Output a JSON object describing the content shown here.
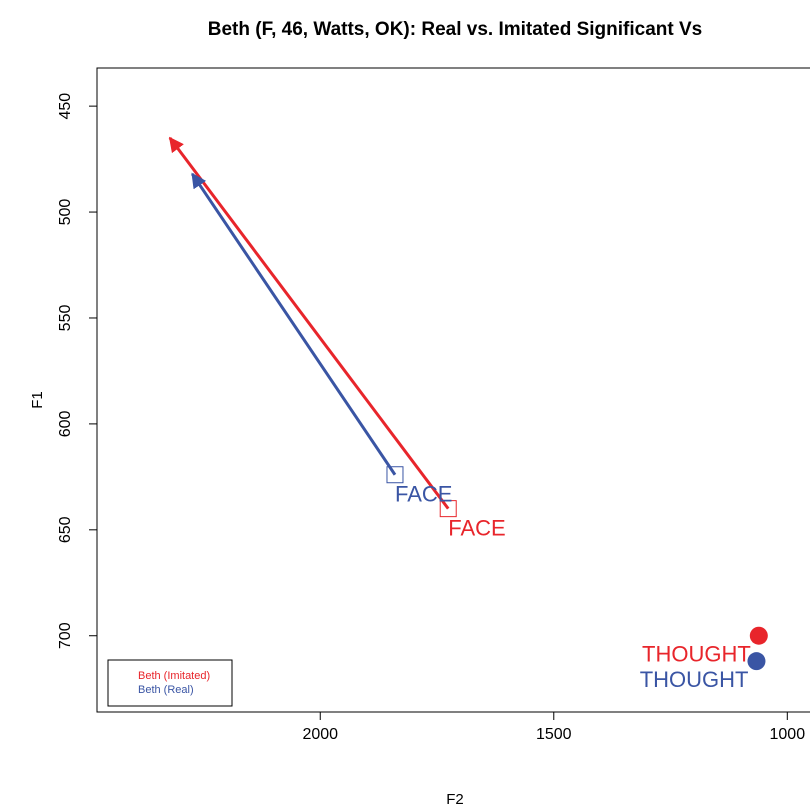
{
  "chart_data": {
    "type": "vowel-arrows",
    "title": "Beth (F, 46, Watts, OK): Real vs. Imitated Significant Vs",
    "x_label": "F2",
    "y_label": "F1",
    "xlim": [
      2478,
      915
    ],
    "ylim": [
      432,
      736
    ],
    "xticks": [
      2000,
      1500,
      1000
    ],
    "yticks": [
      450,
      500,
      550,
      600,
      650,
      700
    ],
    "words": [
      "FACE",
      "THOUGHT"
    ],
    "markers": [
      "square",
      "circle"
    ],
    "legend": "bottomleft",
    "series": [
      {
        "name": "Beth (Imitated)",
        "color": "#e8252b",
        "x": [
          1726,
          1061
        ],
        "y": [
          640,
          700
        ],
        "arrow_x": [
          2322,
          null
        ],
        "arrow_y": [
          465,
          null
        ]
      },
      {
        "name": "Beth (Real)",
        "color": "#3a55a4",
        "x": [
          1840,
          1066
        ],
        "y": [
          624,
          712
        ],
        "arrow_x": [
          2274,
          null
        ],
        "arrow_y": [
          482,
          null
        ]
      }
    ]
  }
}
